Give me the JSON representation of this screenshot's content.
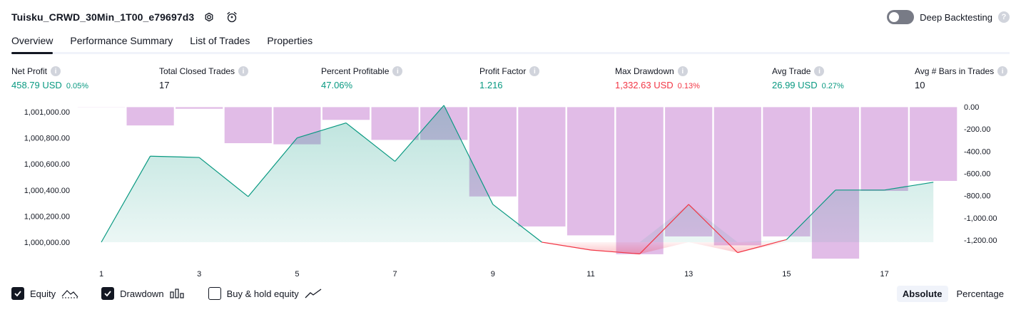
{
  "header": {
    "title": "Tuisku_CRWD_30Min_1T00_e79697d3"
  },
  "deep_backtesting": {
    "label": "Deep Backtesting",
    "enabled": false
  },
  "tabs": [
    {
      "label": "Overview",
      "active": true
    },
    {
      "label": "Performance Summary",
      "active": false
    },
    {
      "label": "List of Trades",
      "active": false
    },
    {
      "label": "Properties",
      "active": false
    }
  ],
  "metrics": [
    {
      "label": "Net Profit",
      "value": "458.79 USD",
      "pct": "0.05%",
      "color": "#089981"
    },
    {
      "label": "Total Closed Trades",
      "value": "17",
      "pct": "",
      "color": "#131722"
    },
    {
      "label": "Percent Profitable",
      "value": "47.06%",
      "pct": "",
      "color": "#089981"
    },
    {
      "label": "Profit Factor",
      "value": "1.216",
      "pct": "",
      "color": "#089981"
    },
    {
      "label": "Max Drawdown",
      "value": "1,332.63 USD",
      "pct": "0.13%",
      "color": "#f23645"
    },
    {
      "label": "Avg Trade",
      "value": "26.99 USD",
      "pct": "0.27%",
      "color": "#089981"
    },
    {
      "label": "Avg # Bars in Trades",
      "value": "10",
      "pct": "",
      "color": "#131722"
    }
  ],
  "chart_data": {
    "type": "area",
    "x": [
      0,
      1,
      2,
      3,
      4,
      5,
      6,
      7,
      8,
      9,
      10,
      11,
      12,
      13,
      14,
      15,
      16,
      17
    ],
    "x_tick_labels": [
      "1",
      "3",
      "5",
      "7",
      "9",
      "11",
      "13",
      "15",
      "17"
    ],
    "x_tick_positions": [
      1,
      3,
      5,
      7,
      9,
      11,
      13,
      15,
      17
    ],
    "series": [
      {
        "name": "Equity",
        "axis": "left",
        "color": "#089981",
        "values": [
          1000000,
          1000660,
          1000650,
          1000350,
          1000800,
          1000915,
          1000620,
          1001050,
          1000290,
          1000000,
          999940,
          999910,
          1000290,
          999920,
          1000020,
          1000400,
          1000400,
          1000460
        ]
      },
      {
        "name": "Drawdown",
        "axis": "right",
        "color": "#ce93d8",
        "values": [
          -5,
          -170,
          -20,
          -330,
          -340,
          -120,
          -300,
          -300,
          -810,
          -1080,
          -1160,
          -1330,
          -1170,
          -1250,
          -1170,
          -1370,
          -760,
          -670
        ]
      }
    ],
    "y_left": {
      "ticks": [
        "1,001,000.00",
        "1,000,800.00",
        "1,000,600.00",
        "1,000,400.00",
        "1,000,200.00",
        "1,000,000.00"
      ],
      "range": [
        1000000,
        1001000
      ]
    },
    "y_right": {
      "ticks": [
        "0.00",
        "-200.00",
        "-400.00",
        "-600.00",
        "-800.00",
        "-1,000.00",
        "-1,200.00"
      ],
      "range": [
        -1200,
        0
      ]
    }
  },
  "legend": {
    "equity": {
      "label": "Equity",
      "checked": true
    },
    "drawdown": {
      "label": "Drawdown",
      "checked": true
    },
    "buy_hold": {
      "label": "Buy & hold equity",
      "checked": false
    }
  },
  "mode": {
    "absolute": "Absolute",
    "percentage": "Percentage",
    "selected": "Absolute"
  }
}
